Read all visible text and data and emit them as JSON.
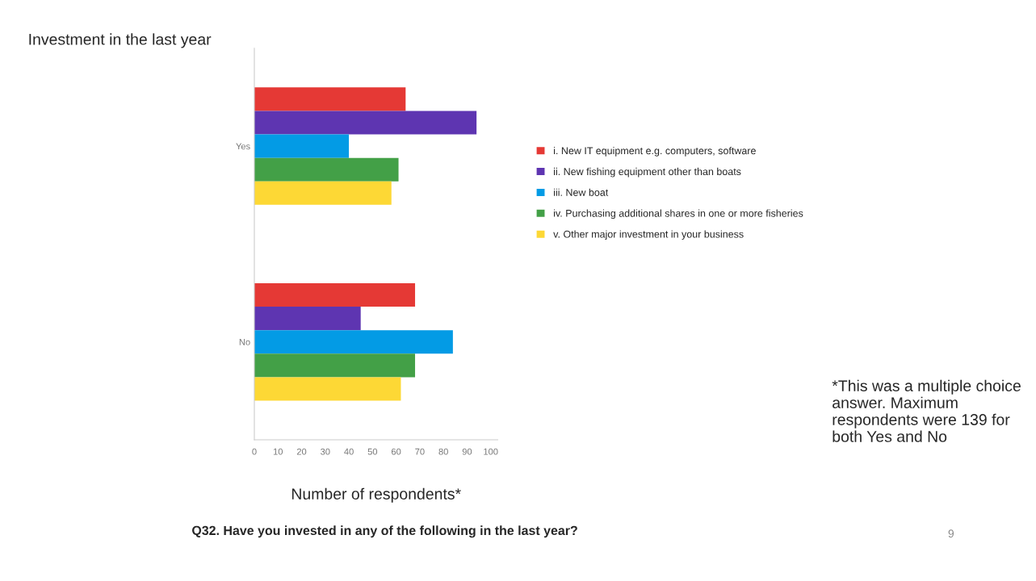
{
  "chart_data": {
    "type": "bar",
    "orientation": "horizontal",
    "title": "Investment in the last year",
    "xlabel": "Number of respondents*",
    "categories": [
      "Yes",
      "No"
    ],
    "series": [
      {
        "name": "i. New IT equipment e.g. computers, software",
        "color": "#e53935",
        "values": [
          64,
          68
        ]
      },
      {
        "name": "ii. New fishing equipment other than boats",
        "color": "#5e35b1",
        "values": [
          94,
          45
        ]
      },
      {
        "name": "iii. New boat",
        "color": "#039be5",
        "values": [
          40,
          84
        ]
      },
      {
        "name": "iv. Purchasing additional shares in one or more fisheries",
        "color": "#43a047",
        "values": [
          61,
          68
        ]
      },
      {
        "name": "v. Other major investment in your business",
        "color": "#fdd835",
        "values": [
          58,
          62
        ]
      }
    ],
    "xlim": [
      0,
      103
    ],
    "xticks": [
      0,
      10,
      20,
      30,
      40,
      50,
      60,
      70,
      80,
      90,
      100
    ],
    "grid": false,
    "legend": "right",
    "annotations": [
      "*This was a multiple choice answer. Maximum respondents were 139 for both Yes and No",
      "Q32. Have you invested in any of the following in the last year?",
      "9"
    ]
  }
}
